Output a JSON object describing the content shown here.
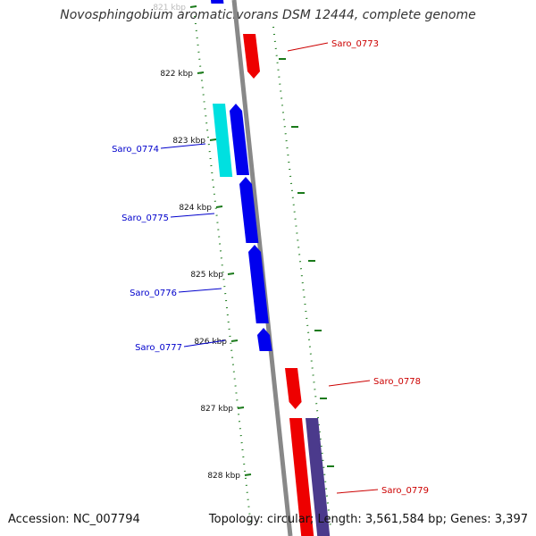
{
  "title": "Novosphingobium aromaticivorans DSM 12444, complete genome",
  "footer": {
    "accession": "Accession: NC_007794",
    "summary": "Topology: circular; Length: 3,561,584 bp; Genes: 3,397"
  },
  "ticks": [
    "821 kbp",
    "822 kbp",
    "823 kbp",
    "824 kbp",
    "825 kbp",
    "826 kbp",
    "827 kbp",
    "828 kbp"
  ],
  "genes": [
    {
      "name": "Saro_0773",
      "strand": "minus"
    },
    {
      "name": "Saro_0774",
      "strand": "plus"
    },
    {
      "name": "Saro_0775",
      "strand": "plus"
    },
    {
      "name": "Saro_0776",
      "strand": "plus"
    },
    {
      "name": "Saro_0777",
      "strand": "plus"
    },
    {
      "name": "Saro_0778",
      "strand": "minus"
    },
    {
      "name": "Saro_0779",
      "strand": "minus"
    }
  ],
  "colors": {
    "plus_strand": "#0000ee",
    "minus_strand": "#ee0000",
    "cds_plus": "#00e0e0",
    "cds_minus": "#4b3a8c",
    "backbone": "#888888",
    "gc_marks": "#1a7a1a",
    "label_plus": "#0000cc",
    "label_minus": "#cc0000"
  }
}
